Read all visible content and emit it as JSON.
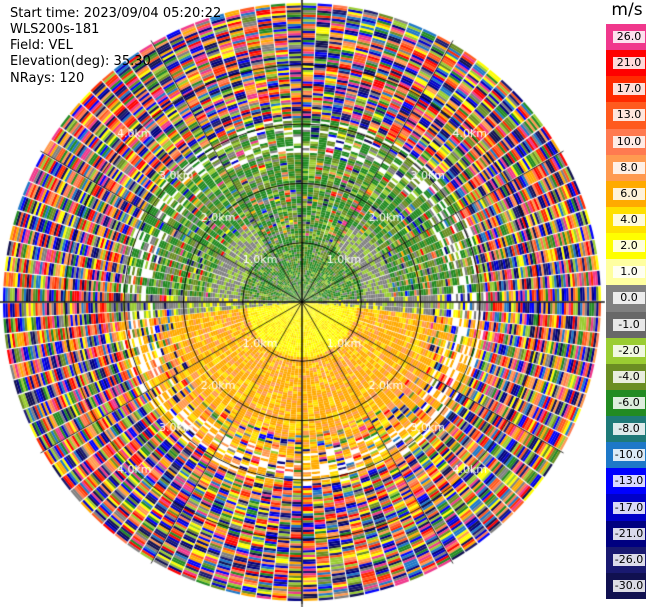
{
  "info": {
    "start_time": "Start time: 2023/09/04 05:20:22",
    "instrument": "WLS200s-181",
    "field": "Field: VEL",
    "elevation": "Elevation(deg): 35.30",
    "nrays": "NRays: 120"
  },
  "ppi": {
    "rays": 120,
    "range_rings_km": [
      1,
      2,
      3,
      4
    ],
    "range_ring_labels": [
      "1.0km",
      "2.0km",
      "3.0km",
      "4.0km"
    ],
    "max_range_km": 4.7
  },
  "colorbar": {
    "unit": "m/s",
    "ticks": [
      "26.0",
      "21.0",
      "17.0",
      "13.0",
      "10.0",
      "8.0",
      "6.0",
      "4.0",
      "2.0",
      "1.0",
      "0.0",
      "-1.0",
      "-2.0",
      "-4.0",
      "-6.0",
      "-8.0",
      "-10.0",
      "-13.0",
      "-17.0",
      "-21.0",
      "-26.0",
      "-30.0"
    ],
    "colors": [
      "#f0388c",
      "#ff0000",
      "#ff2a00",
      "#ff5a1e",
      "#ff7a50",
      "#ff9a50",
      "#ffaa00",
      "#ffe000",
      "#ffff00",
      "#ffffa0",
      "#808080",
      "#686868",
      "#9acd32",
      "#6b8e23",
      "#228b22",
      "#1e7a78",
      "#1e78c8",
      "#0000ff",
      "#0000c8",
      "#000080",
      "#191970",
      "#101050"
    ]
  }
}
